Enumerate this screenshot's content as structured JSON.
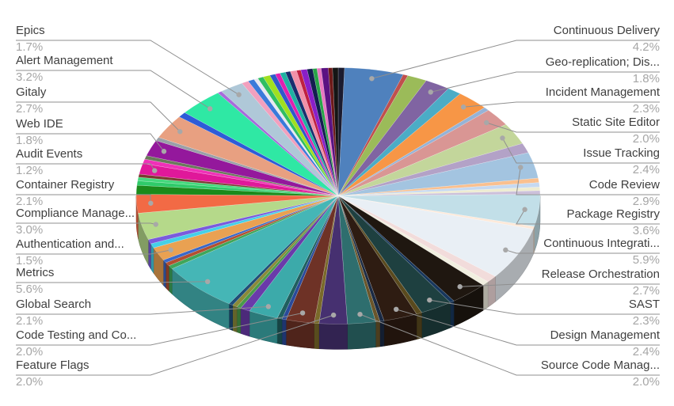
{
  "chart_data": {
    "type": "pie",
    "is_3d": true,
    "title": "",
    "unit": "%",
    "legend_position": "none",
    "labels_style": "callout-leader-lines",
    "callouts_left": [
      {
        "label": "Epics",
        "percent": "1.7%"
      },
      {
        "label": "Alert Management",
        "percent": "3.2%"
      },
      {
        "label": "Gitaly",
        "percent": "2.7%"
      },
      {
        "label": "Web IDE",
        "percent": "1.8%"
      },
      {
        "label": "Audit Events",
        "percent": "1.2%"
      },
      {
        "label": "Container Registry",
        "percent": "2.1%"
      },
      {
        "label": "Compliance Manage...",
        "percent": "3.0%"
      },
      {
        "label": "Authentication and...",
        "percent": "1.5%"
      },
      {
        "label": "Metrics",
        "percent": "5.6%"
      },
      {
        "label": "Global Search",
        "percent": "2.1%"
      },
      {
        "label": "Code Testing and Co...",
        "percent": "2.0%"
      },
      {
        "label": "Feature Flags",
        "percent": "2.0%"
      }
    ],
    "callouts_right": [
      {
        "label": "Continuous Delivery",
        "percent": "4.2%"
      },
      {
        "label": "Geo-replication; Dis...",
        "percent": "1.8%"
      },
      {
        "label": "Incident Management",
        "percent": "2.3%"
      },
      {
        "label": "Static Site Editor",
        "percent": "2.0%"
      },
      {
        "label": "Issue Tracking",
        "percent": "2.4%"
      },
      {
        "label": "Code Review",
        "percent": "2.9%"
      },
      {
        "label": "Package Registry",
        "percent": "3.6%"
      },
      {
        "label": "Continuous Integrati...",
        "percent": "5.9%"
      },
      {
        "label": "Release Orchestration",
        "percent": "2.7%"
      },
      {
        "label": "SAST",
        "percent": "2.3%"
      },
      {
        "label": "Design Management",
        "percent": "2.4%"
      },
      {
        "label": "Source Code Manag...",
        "percent": "2.0%"
      }
    ],
    "slices": [
      {
        "label": "",
        "value": 0.45,
        "color": "#1b1b2f"
      },
      {
        "label": "Continuous Delivery",
        "value": 4.2,
        "color": "#4f81bd"
      },
      {
        "label": "",
        "value": 0.35,
        "color": "#c0504d"
      },
      {
        "label": "",
        "value": 1.4,
        "color": "#9bbb59"
      },
      {
        "label": "Geo-replication; Dis...",
        "value": 1.8,
        "color": "#8064a2"
      },
      {
        "label": "",
        "value": 1.0,
        "color": "#4bacc6"
      },
      {
        "label": "Incident Management",
        "value": 2.3,
        "color": "#f79646"
      },
      {
        "label": "",
        "value": 0.4,
        "color": "#95b3d7"
      },
      {
        "label": "Static Site Editor",
        "value": 2.0,
        "color": "#d99694"
      },
      {
        "label": "Issue Tracking",
        "value": 2.4,
        "color": "#c3d69b"
      },
      {
        "label": "",
        "value": 1.1,
        "color": "#b3a2c7"
      },
      {
        "label": "Code Review",
        "value": 2.9,
        "color": "#a3c4e0"
      },
      {
        "label": "",
        "value": 0.5,
        "color": "#fac08f"
      },
      {
        "label": "",
        "value": 0.5,
        "color": "#c6d9f1"
      },
      {
        "label": "",
        "value": 0.4,
        "color": "#eeecd1"
      },
      {
        "label": "",
        "value": 0.4,
        "color": "#ccc0da"
      },
      {
        "label": "Package Registry",
        "value": 3.6,
        "color": "#c2dfe8"
      },
      {
        "label": "",
        "value": 0.3,
        "color": "#fde9d9"
      },
      {
        "label": "Continuous Integrati...",
        "value": 5.9,
        "color": "#e9eff5"
      },
      {
        "label": "",
        "value": 0.8,
        "color": "#f2dcdb"
      },
      {
        "label": "",
        "value": 0.5,
        "color": "#f1efe0"
      },
      {
        "label": "Release Orchestration",
        "value": 2.7,
        "color": "#1f1710"
      },
      {
        "label": "",
        "value": 0.3,
        "color": "#17375d"
      },
      {
        "label": "SAST",
        "value": 2.3,
        "color": "#1e4040"
      },
      {
        "label": "",
        "value": 0.4,
        "color": "#5a4a1e"
      },
      {
        "label": "Design Management",
        "value": 2.4,
        "color": "#2e1c12"
      },
      {
        "label": "",
        "value": 0.3,
        "color": "#1a2a44"
      },
      {
        "label": "",
        "value": 0.3,
        "color": "#6a552a"
      },
      {
        "label": "Source Code Manag...",
        "value": 2.0,
        "color": "#2e6e6e"
      },
      {
        "label": "Feature Flags",
        "value": 2.0,
        "color": "#463070"
      },
      {
        "label": "",
        "value": 0.35,
        "color": "#7a6a2a"
      },
      {
        "label": "Code Testing and Co...",
        "value": 2.0,
        "color": "#6e3226"
      },
      {
        "label": "",
        "value": 0.3,
        "color": "#2a4a9a"
      },
      {
        "label": "",
        "value": 0.35,
        "color": "#1f5f5f"
      },
      {
        "label": "Global Search",
        "value": 2.1,
        "color": "#3caaaa"
      },
      {
        "label": "",
        "value": 0.7,
        "color": "#6a3aaa"
      },
      {
        "label": "",
        "value": 0.3,
        "color": "#4a9a4a"
      },
      {
        "label": "",
        "value": 0.35,
        "color": "#8a8a3a"
      },
      {
        "label": "",
        "value": 0.3,
        "color": "#1f4e79"
      },
      {
        "label": "Metrics",
        "value": 5.6,
        "color": "#45b6b6"
      },
      {
        "label": "",
        "value": 0.4,
        "color": "#3fa65a"
      },
      {
        "label": "",
        "value": 0.4,
        "color": "#b34f30"
      },
      {
        "label": "",
        "value": 0.35,
        "color": "#3a68c8"
      },
      {
        "label": "Authentication and...",
        "value": 1.5,
        "color": "#e9a152"
      },
      {
        "label": "",
        "value": 0.5,
        "color": "#45d0e8"
      },
      {
        "label": "",
        "value": 0.5,
        "color": "#7a5bdc"
      },
      {
        "label": "Compliance Manage...",
        "value": 3.0,
        "color": "#b5d98a"
      },
      {
        "label": "Container Registry",
        "value": 2.1,
        "color": "#f26a45"
      },
      {
        "label": "",
        "value": 1.0,
        "color": "#1b8a1b"
      },
      {
        "label": "",
        "value": 0.5,
        "color": "#2fcb6a"
      },
      {
        "label": "",
        "value": 0.4,
        "color": "#44d87c"
      },
      {
        "label": "",
        "value": 0.35,
        "color": "#7a3a30"
      },
      {
        "label": "Audit Events",
        "value": 1.2,
        "color": "#e0189a"
      },
      {
        "label": "",
        "value": 0.5,
        "color": "#f030b8"
      },
      {
        "label": "",
        "value": 0.4,
        "color": "#6a7a5a"
      },
      {
        "label": "Web IDE",
        "value": 1.8,
        "color": "#94189c"
      },
      {
        "label": "",
        "value": 0.4,
        "color": "#9aa0a8"
      },
      {
        "label": "Gitaly",
        "value": 2.7,
        "color": "#e8a081"
      },
      {
        "label": "",
        "value": 0.6,
        "color": "#2e5bd8"
      },
      {
        "label": "Alert Management",
        "value": 3.2,
        "color": "#2fe8a4"
      },
      {
        "label": "",
        "value": 0.3,
        "color": "#a86adc"
      },
      {
        "label": "Epics",
        "value": 1.7,
        "color": "#afc8d8"
      },
      {
        "label": "",
        "value": 0.5,
        "color": "#f2a0be"
      },
      {
        "label": "",
        "value": 0.45,
        "color": "#3a7ada"
      },
      {
        "label": "",
        "value": 0.3,
        "color": "#e8e8f0"
      },
      {
        "label": "",
        "value": 0.4,
        "color": "#2fbe62"
      },
      {
        "label": "",
        "value": 0.5,
        "color": "#a0e020"
      },
      {
        "label": "",
        "value": 0.4,
        "color": "#2f5aca"
      },
      {
        "label": "",
        "value": 0.35,
        "color": "#e020b0"
      },
      {
        "label": "",
        "value": 0.4,
        "color": "#1fb2a2"
      },
      {
        "label": "",
        "value": 0.35,
        "color": "#1a2e6e"
      },
      {
        "label": "",
        "value": 0.45,
        "color": "#f090a8"
      },
      {
        "label": "",
        "value": 0.3,
        "color": "#c02040"
      },
      {
        "label": "",
        "value": 0.45,
        "color": "#8a1fc8"
      },
      {
        "label": "",
        "value": 0.4,
        "color": "#141e50"
      },
      {
        "label": "",
        "value": 0.3,
        "color": "#28a448"
      },
      {
        "label": "",
        "value": 0.3,
        "color": "#e878c0"
      },
      {
        "label": "",
        "value": 0.5,
        "color": "#5a1282"
      },
      {
        "label": "",
        "value": 0.3,
        "color": "#6e1a1a"
      },
      {
        "label": "",
        "value": 0.4,
        "color": "#151515"
      }
    ]
  },
  "styles": {
    "background": "#ffffff",
    "label_color": "#3f3f3f",
    "percent_color": "#a6a6a6",
    "leader_line_color": "#8f8f8f",
    "leader_dot_color": "#a8a8a8"
  }
}
